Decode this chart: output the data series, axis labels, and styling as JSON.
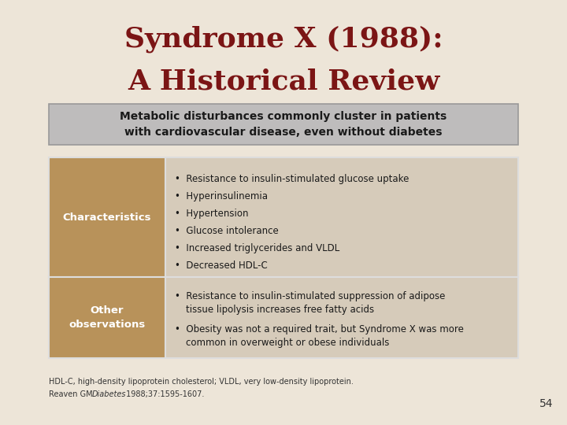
{
  "title_line1": "Syndrome X (1988):",
  "title_line2": "A Historical Review",
  "title_color": "#7B1515",
  "bg_color": "#EDE5D8",
  "header_text": "Metabolic disturbances commonly cluster in patients\nwith cardiovascular disease, even without diabetes",
  "header_bg": "#BEBCBC",
  "header_border": "#999999",
  "header_text_color": "#1A1A1A",
  "left_col_bg": "#B8925A",
  "left_col_text_color": "#FFFFFF",
  "right_col_bg": "#D6CBBA",
  "right_col_text_color": "#1A1A1A",
  "table_border_color": "#DDDDDD",
  "row1_label": "Characteristics",
  "row1_bullets": [
    "Resistance to insulin-stimulated glucose uptake",
    "Hyperinsulinemia",
    "Hypertension",
    "Glucose intolerance",
    "Increased triglycerides and VLDL",
    "Decreased HDL-C"
  ],
  "row2_label": "Other\nobservations",
  "row2_bullet1_line1": "Resistance to insulin-stimulated suppression of adipose",
  "row2_bullet1_line2": "tissue lipolysis increases free fatty acids",
  "row2_bullet2_line1": "Obesity was not a required trait, but Syndrome X was more",
  "row2_bullet2_line2": "common in overweight or obese individuals",
  "footnote1": "HDL-C, high-density lipoprotein cholesterol; VLDL, very low-density lipoprotein.",
  "footnote2a": "Reaven GM. ",
  "footnote2b": "Diabetes",
  "footnote2c": ". 1988;37:1595-1607.",
  "page_num": "54",
  "footnote_color": "#333333"
}
